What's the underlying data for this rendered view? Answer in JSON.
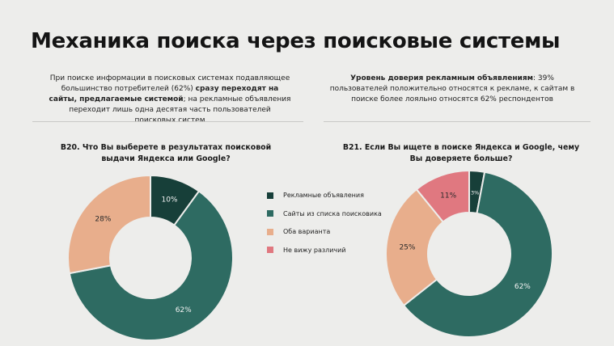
{
  "title": "Механика поиска через поисковые системы",
  "intro_left": {
    "p1": "При поиске информации в поисковых системах подавляющее большинство потребителей (62%) ",
    "p2": "сразу переходят на сайты, предлагаемые системой",
    "p3": "; на рекламные объявления переходит лишь одна десятая часть пользователей поисковых систем"
  },
  "intro_right": {
    "p1": "Уровень доверия рекламным объявлениям",
    "p2": ": 39% пользователей положительно относятся к рекламе, к сайтам в поиске более лояльно относятся 62% респондентов"
  },
  "colors": {
    "ads": "#173f39",
    "sites": "#2e6b62",
    "both": "#e8ae8c",
    "no_diff": "#e07880",
    "background": "#ededeb"
  },
  "legend": [
    {
      "label": "Рекламные объявления",
      "color": "#173f39"
    },
    {
      "label": "Сайты из списка поисковика",
      "color": "#2e6b62"
    },
    {
      "label": "Оба варианта",
      "color": "#e8ae8c"
    },
    {
      "label": "Не вижу различий",
      "color": "#e07880"
    }
  ],
  "chart_data": [
    {
      "type": "pie",
      "title": "В20. Что Вы выберете в результатах поисковой выдачи Яндекса или Google?",
      "categories": [
        "Рекламные объявления",
        "Сайты из списка поисковика",
        "Оба варианта"
      ],
      "values": [
        10,
        62,
        28
      ],
      "labels": [
        "10%",
        "62%",
        "28%"
      ],
      "colors": [
        "#173f39",
        "#2e6b62",
        "#e8ae8c"
      ],
      "legend": "right"
    },
    {
      "type": "pie",
      "title": "В21. Если Вы ищете в поиске Яндекса и Google, чему Вы доверяете больше?",
      "categories": [
        "Рекламные объявления",
        "Сайты из списка поисковика",
        "Оба варианта",
        "Не вижу различий"
      ],
      "values": [
        3,
        62,
        25,
        11
      ],
      "labels": [
        "3%",
        "62%",
        "25%",
        "11%"
      ],
      "colors": [
        "#173f39",
        "#2e6b62",
        "#e8ae8c",
        "#e07880"
      ]
    }
  ]
}
